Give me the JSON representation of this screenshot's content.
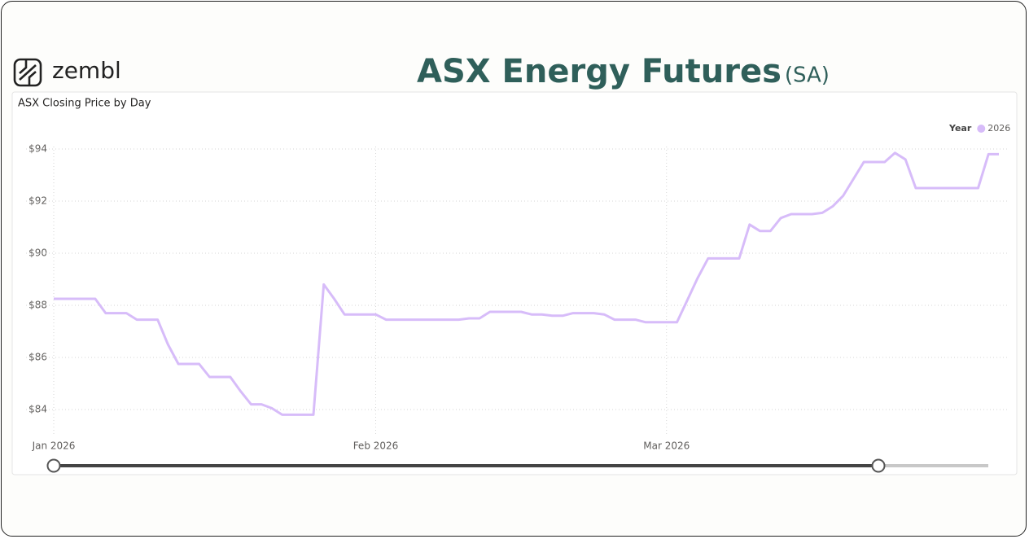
{
  "logo_text": "zembl",
  "page_title": "ASX Energy Futures",
  "page_title_suffix": "(SA)",
  "chart_data": {
    "type": "line",
    "title": "ASX Closing Price by Day",
    "legend_title": "Year",
    "legend_position": "top-right",
    "grid": true,
    "x": [
      0,
      4,
      5,
      7,
      8,
      10,
      11,
      12,
      14,
      15,
      17,
      18,
      19,
      20,
      21,
      22,
      25,
      26,
      27,
      28,
      31,
      32,
      39,
      40,
      41,
      42,
      45,
      46,
      47,
      48,
      49,
      50,
      52,
      53,
      54,
      56,
      57,
      60,
      61,
      62,
      63,
      66,
      67,
      68,
      69,
      70,
      71,
      73,
      74,
      75,
      76,
      78,
      80,
      81,
      82,
      83,
      89,
      90,
      91
    ],
    "series": [
      {
        "name": "2026",
        "color": "#d7bcf9",
        "values": [
          88.25,
          88.25,
          87.7,
          87.7,
          87.45,
          87.45,
          86.5,
          85.75,
          85.75,
          85.25,
          85.25,
          84.7,
          84.2,
          84.2,
          84.05,
          83.8,
          83.8,
          88.8,
          88.25,
          87.65,
          87.65,
          87.45,
          87.45,
          87.5,
          87.5,
          87.75,
          87.75,
          87.65,
          87.65,
          87.6,
          87.6,
          87.7,
          87.7,
          87.65,
          87.45,
          87.45,
          87.35,
          87.35,
          88.2,
          89.05,
          89.8,
          89.8,
          91.1,
          90.85,
          90.85,
          91.35,
          91.5,
          91.5,
          91.55,
          91.8,
          92.2,
          93.5,
          93.5,
          93.85,
          93.6,
          92.5,
          92.5,
          93.8,
          93.8
        ]
      }
    ],
    "xlim": [
      0,
      91
    ],
    "xticks": [
      {
        "value": 0,
        "label": "Jan 2026"
      },
      {
        "value": 31,
        "label": "Feb 2026"
      },
      {
        "value": 59,
        "label": "Mar 2026"
      }
    ],
    "ylim": [
      83,
      94.5
    ],
    "yticks": [
      {
        "value": 84,
        "label": "$84"
      },
      {
        "value": 86,
        "label": "$86"
      },
      {
        "value": 88,
        "label": "$88"
      },
      {
        "value": 90,
        "label": "$90"
      },
      {
        "value": 92,
        "label": "$92"
      },
      {
        "value": 94,
        "label": "$94"
      }
    ]
  }
}
